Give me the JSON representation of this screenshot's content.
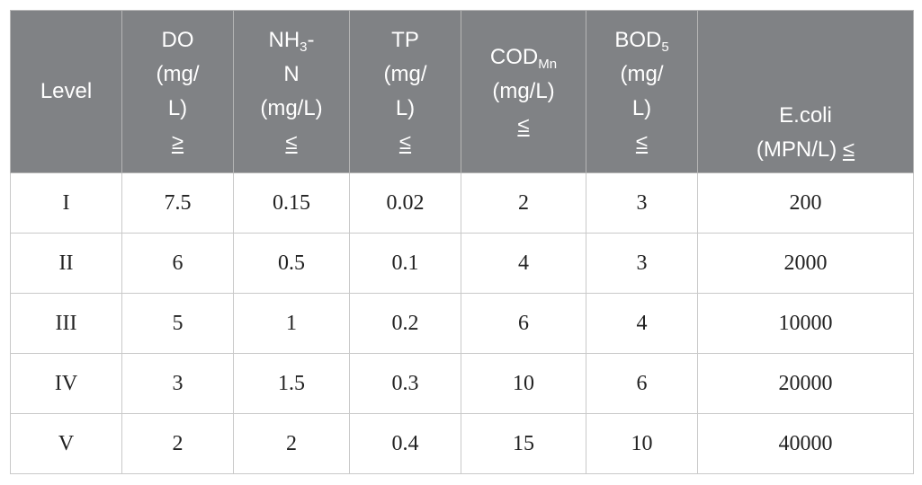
{
  "header": {
    "level": "Level",
    "do": {
      "line1": "DO",
      "line2": "(mg/",
      "line3": "L)",
      "line4": "≥"
    },
    "nh3": {
      "main": "NH",
      "sub": "3",
      "suffix": "-",
      "line2": "N",
      "line3": "(mg/L)",
      "line4": "≤"
    },
    "tp": {
      "line1": "TP",
      "line2": "(mg/",
      "line3": "L)",
      "line4": "≤"
    },
    "cod": {
      "main": "COD",
      "sub": "Mn",
      "line2": "(mg/L)",
      "line3": "≤"
    },
    "bod": {
      "main": "BOD",
      "sub": "5",
      "line2": "(mg/",
      "line3": "L)",
      "line4": "≤"
    },
    "ecoli": {
      "line1": "E.coli",
      "line2": "(MPN/L)",
      "sym": "≤"
    }
  },
  "rows": [
    {
      "level": "I",
      "do": "7.5",
      "nh3": "0.15",
      "tp": "0.02",
      "cod": "2",
      "bod": "3",
      "ecoli": "200"
    },
    {
      "level": "II",
      "do": "6",
      "nh3": "0.5",
      "tp": "0.1",
      "cod": "4",
      "bod": "3",
      "ecoli": "2000"
    },
    {
      "level": "III",
      "do": "5",
      "nh3": "1",
      "tp": "0.2",
      "cod": "6",
      "bod": "4",
      "ecoli": "10000"
    },
    {
      "level": "IV",
      "do": "3",
      "nh3": "1.5",
      "tp": "0.3",
      "cod": "10",
      "bod": "6",
      "ecoli": "20000"
    },
    {
      "level": "V",
      "do": "2",
      "nh3": "2",
      "tp": "0.4",
      "cod": "15",
      "bod": "10",
      "ecoli": "40000"
    }
  ]
}
